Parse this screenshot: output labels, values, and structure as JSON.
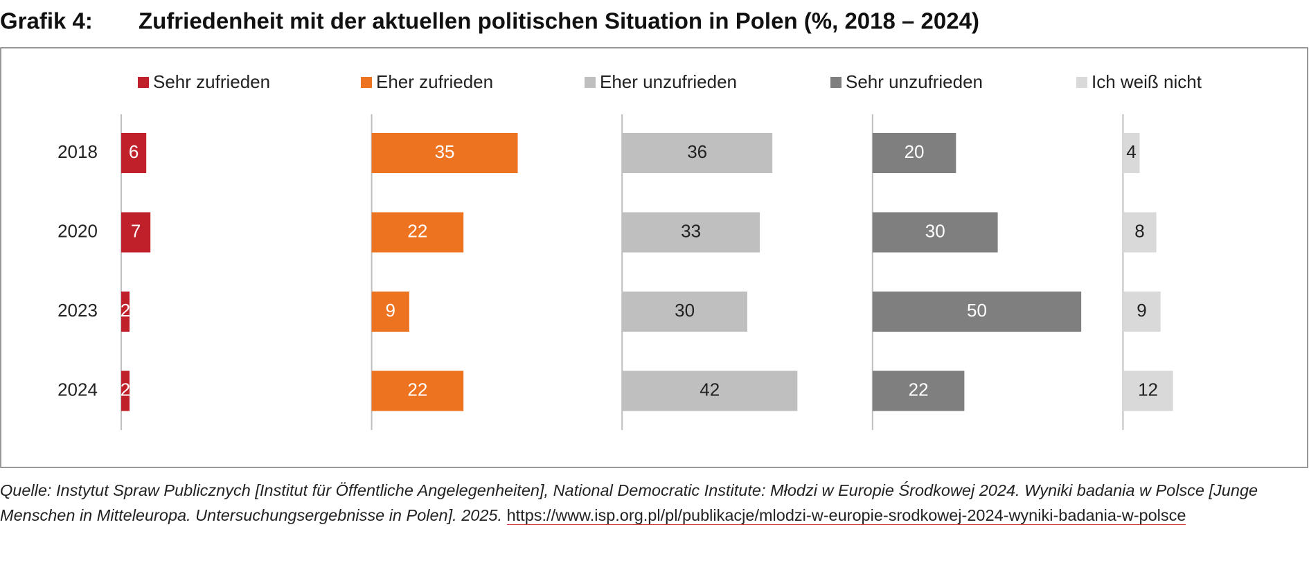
{
  "chart_data": {
    "type": "bar",
    "orientation": "horizontal",
    "layout": "small-multiples",
    "figure_label": "Grafik 4:",
    "title": "Zufriedenheit mit der aktuellen politischen Situation in Polen (%, 2018 – 2024)",
    "categories": [
      "2018",
      "2020",
      "2023",
      "2024"
    ],
    "xlim": [
      0,
      60
    ],
    "legend": "top",
    "series": [
      {
        "name": "Sehr zufrieden",
        "color": "#c0202a",
        "values": [
          6,
          7,
          2,
          2
        ]
      },
      {
        "name": "Eher zufrieden",
        "color": "#ee7320",
        "values": [
          35,
          22,
          9,
          22
        ]
      },
      {
        "name": "Eher unzufrieden",
        "color": "#bfbfbf",
        "values": [
          36,
          33,
          30,
          42
        ]
      },
      {
        "name": "Sehr unzufrieden",
        "color": "#7f7f7f",
        "values": [
          20,
          30,
          50,
          22
        ]
      },
      {
        "name": "Ich weiß nicht",
        "color": "#d9d9d9",
        "values": [
          4,
          8,
          9,
          12
        ]
      }
    ],
    "source": "Quelle: Instytut Spraw Publicznych [Institut für Öffentliche Angelegenheiten], National Democratic Institute: Młodzi w Europie Środkowej 2024. Wyniki badania w Polsce [Junge Menschen in Mitteleuropa. Untersuchungsergebnisse in Polen]. 2025.",
    "source_url": "https://www.isp.org.pl/pl/publikacje/mlodzi-w-europie-srodkowej-2024-wyniki-badania-w-polsce"
  }
}
